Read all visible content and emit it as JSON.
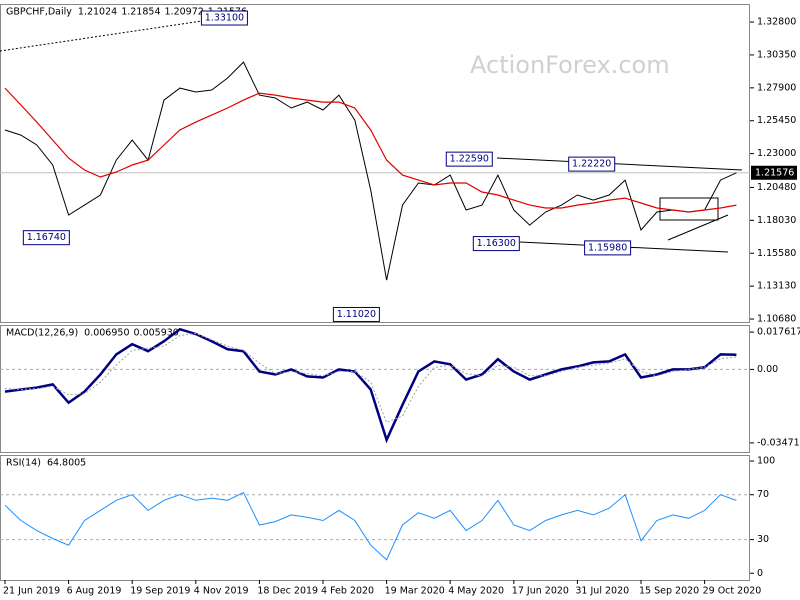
{
  "chart_data": [
    {
      "type": "line",
      "title": "GBPCHF,Daily",
      "header_values": [
        1.21024,
        1.21854,
        1.20972,
        1.21576
      ],
      "watermark": "ActionForex.com",
      "categories": [
        "21 Jun 2019",
        null,
        null,
        null,
        "6 Aug 2019",
        null,
        null,
        null,
        "19 Sep 2019",
        null,
        null,
        null,
        "4 Nov 2019",
        null,
        null,
        null,
        "18 Dec 2019",
        null,
        null,
        null,
        "4 Feb 2020",
        null,
        null,
        null,
        "19 Mar 2020",
        null,
        null,
        null,
        "4 May 2020",
        null,
        null,
        null,
        "17 Jun 2020",
        null,
        null,
        null,
        "31 Jul 2020",
        null,
        null,
        null,
        "15 Sep 2020",
        null,
        null,
        null,
        "29 Oct 2020",
        null,
        null
      ],
      "series": [
        {
          "name": "Close",
          "color": "#000000",
          "values": [
            1.2476,
            1.2438,
            1.2364,
            1.2215,
            1.1843,
            1.1917,
            1.1992,
            1.2252,
            1.2401,
            1.2252,
            1.2699,
            1.2788,
            1.2759,
            1.2774,
            1.2863,
            1.2982,
            1.2736,
            1.2714,
            1.264,
            1.2684,
            1.2625,
            1.2736,
            1.255,
            1.2029,
            1.1358,
            1.1917,
            1.2081,
            1.2066,
            1.214,
            1.188,
            1.1917,
            1.214,
            1.188,
            1.1768,
            1.1865,
            1.1917,
            1.1992,
            1.1954,
            1.1992,
            1.2103,
            1.1731,
            1.1865,
            1.188,
            1.1865,
            1.188,
            1.2103,
            1.21576
          ]
        },
        {
          "name": "MA",
          "color": "#e00000",
          "values": [
            1.2788,
            1.2662,
            1.2535,
            1.2401,
            1.2267,
            1.2178,
            1.2126,
            1.2163,
            1.2215,
            1.2252,
            1.2364,
            1.2476,
            1.2535,
            1.2587,
            1.264,
            1.2699,
            1.2751,
            1.2736,
            1.2714,
            1.2699,
            1.2684,
            1.2684,
            1.264,
            1.2476,
            1.2252,
            1.214,
            1.2103,
            1.2066,
            1.2081,
            1.2081,
            1.2014,
            1.1992,
            1.1954,
            1.1917,
            1.1895,
            1.1895,
            1.1917,
            1.1932,
            1.1954,
            1.1969,
            1.1932,
            1.1895,
            1.188,
            1.1865,
            1.188,
            1.1895,
            1.1917
          ]
        }
      ],
      "annotations": [
        {
          "value": 1.331,
          "label": "1.33100"
        },
        {
          "value": 1.1674,
          "label": "1.16740"
        },
        {
          "value": 1.1102,
          "label": "1.11020"
        },
        {
          "value": 1.2259,
          "label": "1.22590"
        },
        {
          "value": 1.163,
          "label": "1.16300"
        },
        {
          "value": 1.2222,
          "label": "1.22220"
        },
        {
          "value": 1.1598,
          "label": "1.15980"
        }
      ],
      "ylim": [
        1.1046,
        1.3407
      ],
      "yticks": [
        {
          "value": 1.328,
          "label": "1.32800"
        },
        {
          "value": 1.3035,
          "label": "1.30350"
        },
        {
          "value": 1.279,
          "label": "1.27900"
        },
        {
          "value": 1.2545,
          "label": "1.25450"
        },
        {
          "value": 1.23,
          "label": "1.23000"
        },
        {
          "value": 1.2048,
          "label": "1.20480"
        },
        {
          "value": 1.1803,
          "label": "1.18030"
        },
        {
          "value": 1.1558,
          "label": "1.15580"
        },
        {
          "value": 1.1313,
          "label": "1.13130"
        },
        {
          "value": 1.1068,
          "label": "1.10680"
        }
      ]
    },
    {
      "type": "line",
      "title": "MACD(12,26,9)",
      "header_values": [
        {
          "value": 0.00695,
          "label": "0.006950"
        },
        {
          "value": 0.00593,
          "label": "0.005930"
        }
      ],
      "series": [
        {
          "name": "MACD",
          "color": "#000080",
          "values": [
            -0.0105,
            -0.0095,
            -0.0086,
            -0.0071,
            -0.0157,
            -0.0105,
            -0.0024,
            0.0071,
            0.0119,
            0.0086,
            0.0133,
            0.019,
            0.0167,
            0.0133,
            0.0095,
            0.0086,
            -0.001,
            -0.0024,
            0,
            -0.0033,
            -0.0038,
            0,
            -0.001,
            -0.0095,
            -0.0333,
            -0.0167,
            -0.001,
            0.0038,
            0.0024,
            -0.0048,
            -0.0024,
            0.0048,
            -0.001,
            -0.0048,
            -0.0024,
            0,
            0.0014,
            0.0033,
            0.0038,
            0.0071,
            -0.0038,
            -0.0024,
            0,
            0,
            0.001,
            0.0071,
            0.00695
          ]
        },
        {
          "name": "Signal",
          "color": "#a0a0a0",
          "values": [
            -0.009,
            -0.0095,
            -0.009,
            -0.008,
            -0.012,
            -0.0115,
            -0.006,
            0.002,
            0.009,
            0.01,
            0.011,
            0.016,
            0.017,
            0.014,
            0.011,
            0.009,
            0.003,
            -0.002,
            -0.001,
            -0.002,
            -0.003,
            -0.001,
            -0.001,
            -0.006,
            -0.025,
            -0.022,
            -0.008,
            0.001,
            0.002,
            -0.002,
            -0.003,
            0.002,
            0.001,
            -0.003,
            -0.003,
            -0.001,
            0.001,
            0.002,
            0.003,
            0.005,
            -0.001,
            -0.003,
            -0.001,
            0,
            0.001,
            0.005,
            0.00593
          ]
        }
      ],
      "ylim": [
        -0.039,
        0.0205
      ],
      "yticks": [
        0.017617,
        {
          "value": 0,
          "label": "0.00"
        },
        -0.034711
      ]
    },
    {
      "type": "line",
      "title": "RSI(14)",
      "header_values": [
        64.8005
      ],
      "series": [
        {
          "name": "RSI",
          "color": "#1e90ff",
          "values": [
            60.7,
            47,
            38,
            31,
            25,
            47,
            56,
            65,
            70,
            56,
            65,
            70,
            65,
            67,
            65,
            72,
            43,
            46,
            52,
            50,
            47,
            56,
            47,
            25,
            12,
            43,
            54,
            49,
            56,
            38,
            47,
            65,
            43,
            38,
            47,
            52,
            56,
            52,
            58,
            70,
            29,
            47,
            52,
            49,
            56,
            70,
            64.8005
          ]
        }
      ],
      "ylim": [
        -6,
        104.5
      ],
      "yticks": [
        100,
        70,
        30,
        0
      ],
      "levels": [
        70,
        30
      ]
    }
  ]
}
